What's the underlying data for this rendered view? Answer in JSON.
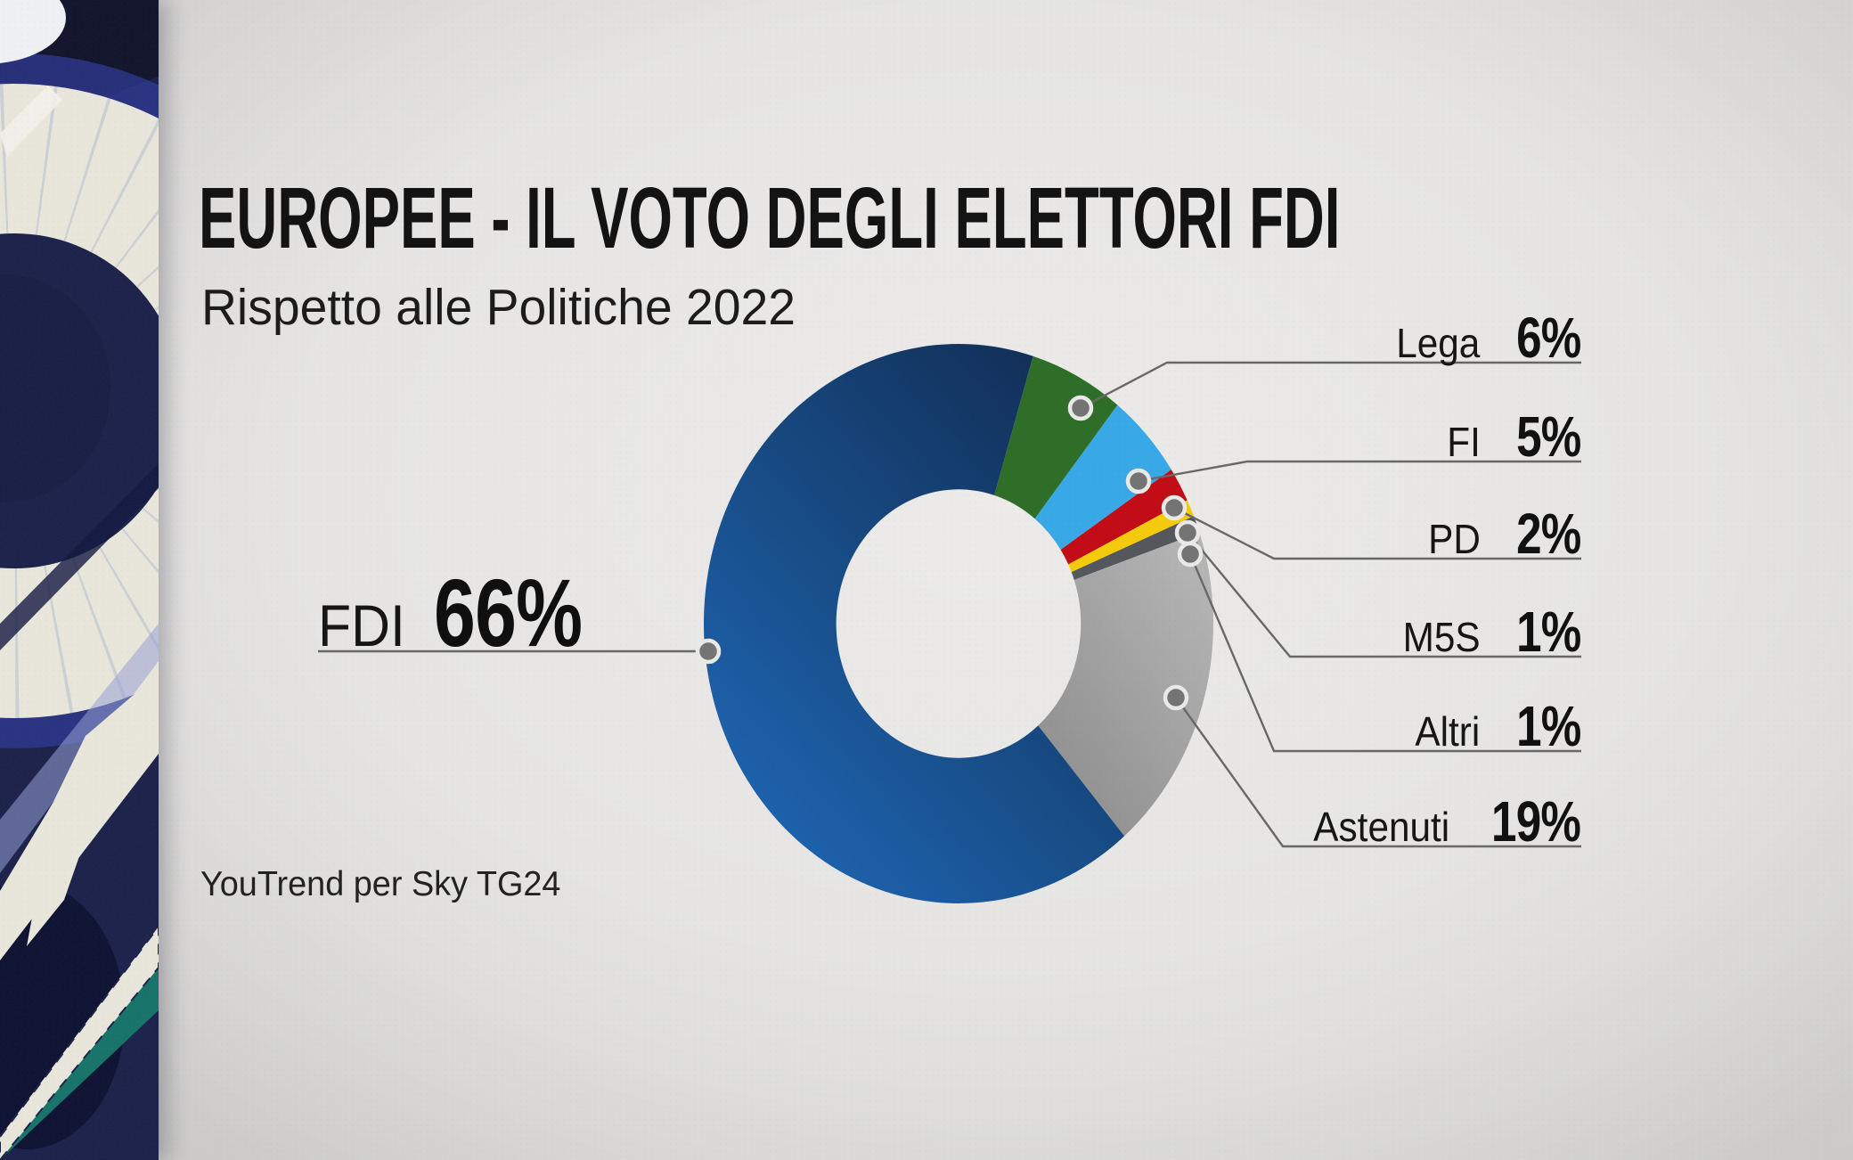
{
  "page": {
    "title": "EUROPEE - IL VOTO DEGLI ELETTORI FDI",
    "subtitle": "Rispetto alle Politiche 2022",
    "credit": "YouTrend per Sky TG24"
  },
  "chart_data": {
    "type": "pie",
    "donut": true,
    "title": "EUROPEE - IL VOTO DEGLI ELETTORI FDI",
    "subtitle": "Rispetto alle Politiche 2022",
    "source": "YouTrend per Sky TG24",
    "legend_position": "callout-labels",
    "slices": [
      {
        "label": "FDI",
        "value": 66,
        "pct": "66%",
        "color": "#1a57a0",
        "gradient": [
          "#122f58",
          "#174a82",
          "#1e64b1"
        ]
      },
      {
        "label": "Lega",
        "value": 6,
        "pct": "6%",
        "color": "#2f6e28"
      },
      {
        "label": "FI",
        "value": 5,
        "pct": "5%",
        "color": "#38a8e6"
      },
      {
        "label": "PD",
        "value": 2,
        "pct": "2%",
        "color": "#c20d17"
      },
      {
        "label": "M5S",
        "value": 1,
        "pct": "1%",
        "color": "#f4cb0c"
      },
      {
        "label": "Altri",
        "value": 1,
        "pct": "1%",
        "color": "#54585c"
      },
      {
        "label": "Astenuti",
        "value": 19,
        "pct": "19%",
        "color": "#a5a5a5",
        "gradient": [
          "#b4b4b4",
          "#8f8f8f"
        ]
      }
    ],
    "accent_colors": {
      "leader_line": "#686868",
      "dot_fill": "#747474",
      "dot_ring": "#e9e9e7",
      "text": "#141414"
    }
  }
}
